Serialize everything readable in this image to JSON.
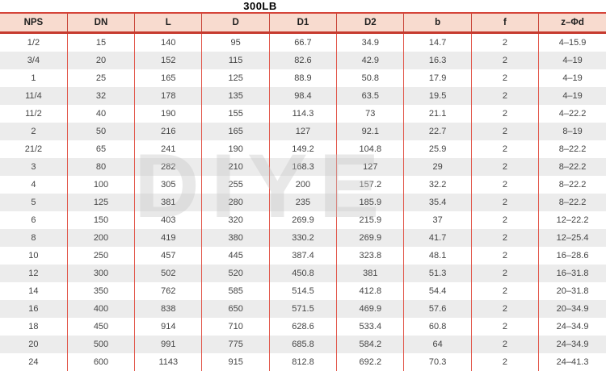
{
  "title": "300LB",
  "watermark": "DIYE",
  "colors": {
    "header_bg": "#f8dbcf",
    "border_red": "#d5453a",
    "header_rule_red": "#c63a2e",
    "grid_red": "#e2574b",
    "alt_row_gray": "#ececec",
    "text_dark": "#454545",
    "watermark_gray": "#c9c9c9"
  },
  "chart_data": {
    "type": "table",
    "title": "300LB",
    "columns": [
      "NPS",
      "DN",
      "L",
      "D",
      "D1",
      "D2",
      "b",
      "f",
      "z–Φd"
    ],
    "rows": [
      [
        "1/2",
        "15",
        "140",
        "95",
        "66.7",
        "34.9",
        "14.7",
        "2",
        "4–15.9"
      ],
      [
        "3/4",
        "20",
        "152",
        "115",
        "82.6",
        "42.9",
        "16.3",
        "2",
        "4–19"
      ],
      [
        "1",
        "25",
        "165",
        "125",
        "88.9",
        "50.8",
        "17.9",
        "2",
        "4–19"
      ],
      [
        "11/4",
        "32",
        "178",
        "135",
        "98.4",
        "63.5",
        "19.5",
        "2",
        "4–19"
      ],
      [
        "11/2",
        "40",
        "190",
        "155",
        "114.3",
        "73",
        "21.1",
        "2",
        "4–22.2"
      ],
      [
        "2",
        "50",
        "216",
        "165",
        "127",
        "92.1",
        "22.7",
        "2",
        "8–19"
      ],
      [
        "21/2",
        "65",
        "241",
        "190",
        "149.2",
        "104.8",
        "25.9",
        "2",
        "8–22.2"
      ],
      [
        "3",
        "80",
        "282",
        "210",
        "168.3",
        "127",
        "29",
        "2",
        "8–22.2"
      ],
      [
        "4",
        "100",
        "305",
        "255",
        "200",
        "157.2",
        "32.2",
        "2",
        "8–22.2"
      ],
      [
        "5",
        "125",
        "381",
        "280",
        "235",
        "185.9",
        "35.4",
        "2",
        "8–22.2"
      ],
      [
        "6",
        "150",
        "403",
        "320",
        "269.9",
        "215.9",
        "37",
        "2",
        "12–22.2"
      ],
      [
        "8",
        "200",
        "419",
        "380",
        "330.2",
        "269.9",
        "41.7",
        "2",
        "12–25.4"
      ],
      [
        "10",
        "250",
        "457",
        "445",
        "387.4",
        "323.8",
        "48.1",
        "2",
        "16–28.6"
      ],
      [
        "12",
        "300",
        "502",
        "520",
        "450.8",
        "381",
        "51.3",
        "2",
        "16–31.8"
      ],
      [
        "14",
        "350",
        "762",
        "585",
        "514.5",
        "412.8",
        "54.4",
        "2",
        "20–31.8"
      ],
      [
        "16",
        "400",
        "838",
        "650",
        "571.5",
        "469.9",
        "57.6",
        "2",
        "20–34.9"
      ],
      [
        "18",
        "450",
        "914",
        "710",
        "628.6",
        "533.4",
        "60.8",
        "2",
        "24–34.9"
      ],
      [
        "20",
        "500",
        "991",
        "775",
        "685.8",
        "584.2",
        "64",
        "2",
        "24–34.9"
      ],
      [
        "24",
        "600",
        "1143",
        "915",
        "812.8",
        "692.2",
        "70.3",
        "2",
        "24–41.3"
      ]
    ]
  }
}
